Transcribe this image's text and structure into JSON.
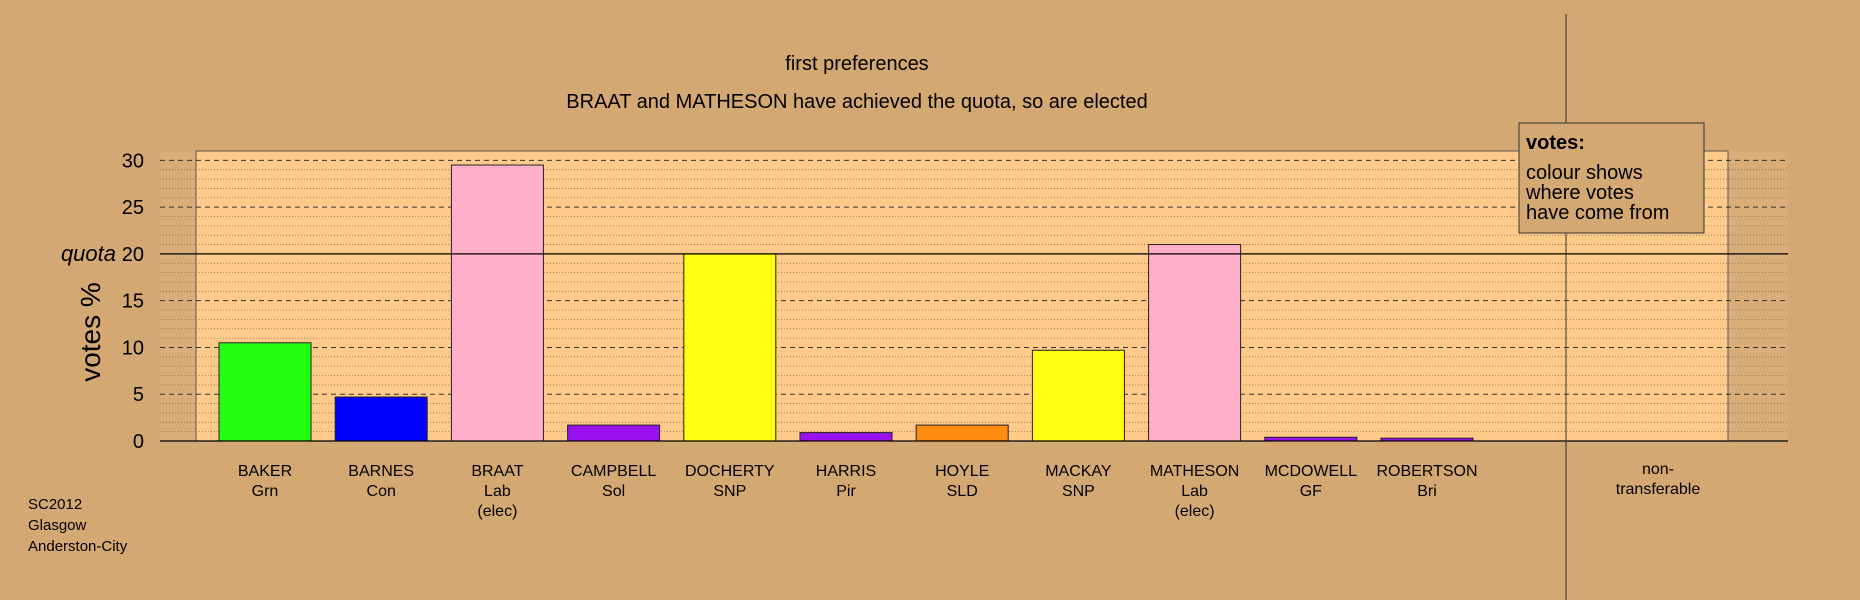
{
  "chart_data": {
    "type": "bar",
    "title": "first preferences",
    "subtitle": "BRAAT and MATHESON have achieved the quota, so are elected",
    "ylabel": "votes %",
    "ylim": [
      0,
      31
    ],
    "yticks": [
      0,
      5,
      10,
      15,
      20,
      25,
      30
    ],
    "quota": 20,
    "quota_label": "quota",
    "categories": [
      {
        "name": "BAKER",
        "party": "Grn",
        "note": ""
      },
      {
        "name": "BARNES",
        "party": "Con",
        "note": ""
      },
      {
        "name": "BRAAT",
        "party": "Lab",
        "note": "(elec)"
      },
      {
        "name": "CAMPBELL",
        "party": "Sol",
        "note": ""
      },
      {
        "name": "DOCHERTY",
        "party": "SNP",
        "note": ""
      },
      {
        "name": "HARRIS",
        "party": "Pir",
        "note": ""
      },
      {
        "name": "HOYLE",
        "party": "SLD",
        "note": ""
      },
      {
        "name": "MACKAY",
        "party": "SNP",
        "note": ""
      },
      {
        "name": "MATHESON",
        "party": "Lab",
        "note": "(elec)"
      },
      {
        "name": "MCDOWELL",
        "party": "GF",
        "note": ""
      },
      {
        "name": "ROBERTSON",
        "party": "Bri",
        "note": ""
      }
    ],
    "values": [
      10.5,
      4.7,
      29.5,
      1.7,
      20.0,
      0.9,
      1.7,
      9.7,
      21.0,
      0.4,
      0.3
    ],
    "colors": [
      "#22ff11",
      "#0000ff",
      "#ffb0c8",
      "#9911ee",
      "#ffff11",
      "#9911ee",
      "#ff8c11",
      "#ffff11",
      "#ffb0c8",
      "#9911ee",
      "#9911ee"
    ],
    "nontransferable_label": [
      "non-",
      "transferable"
    ],
    "legend": {
      "title": "votes:",
      "lines": [
        "colour shows",
        "where votes",
        "have come from"
      ],
      "placement": "top-right"
    },
    "grid": true
  },
  "footer": [
    "SC2012",
    "Glasgow",
    "Anderston-City"
  ]
}
